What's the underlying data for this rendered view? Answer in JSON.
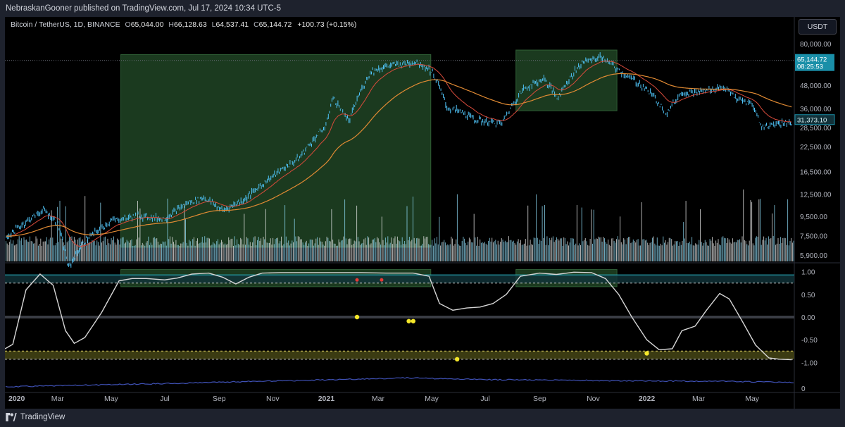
{
  "publisher": "NebraskanGooner published on TradingView.com, Jul 17, 2024 10:34 UTC-5",
  "symbol": {
    "name": "Bitcoin / TetherUS, 1D, BINANCE",
    "o_label": "O",
    "o": "65,044.00",
    "h_label": "H",
    "h": "66,128.63",
    "l_label": "L",
    "l": "64,537.41",
    "c_label": "C",
    "c": "65,144.72",
    "change": "+100.73 (+0.15%)"
  },
  "currency": "USDT",
  "footer_brand": "TradingView",
  "colors": {
    "background": "#000000",
    "frame": "#1e222d",
    "candle": "#4fc3f7",
    "ema_short": "#d84b3b",
    "ema_long": "#e08a33",
    "highlight_box": "#1b3a1f",
    "osc_line": "#d6d6d6",
    "yellow_band": "#3b3b12",
    "bottom_line": "#3f51b5",
    "tag_teal": "#1a8fa8",
    "tag_dark": "#12323a"
  },
  "chart_data": [
    {
      "type": "line",
      "title": "",
      "scale": "log",
      "price_axis_ticks": [
        "80,000.00",
        "48,000.00",
        "36,000.00",
        "28,500.00",
        "22,500.00",
        "16,500.00",
        "12,500.00",
        "9,500.00",
        "7,500.00",
        "5,900.00"
      ],
      "price_axis_tick_values": [
        80000,
        48000,
        36000,
        28500,
        22500,
        16500,
        12500,
        9500,
        7500,
        5900
      ],
      "time_axis_labels": [
        "2020",
        "Mar",
        "May",
        "Jul",
        "Sep",
        "Nov",
        "2021",
        "Mar",
        "May",
        "Jul",
        "Sep",
        "Nov",
        "2022",
        "Mar",
        "May"
      ],
      "last_price_tag": {
        "price": "65,144.72",
        "countdown": "08:25:53",
        "value": 65144.72
      },
      "level_tag": {
        "price": "31,373.10",
        "value": 31373.1
      },
      "ylim": [
        5500,
        92000
      ],
      "series": [
        {
          "kind": "candles",
          "x": [
            "2020-01-01",
            "2020-02-01",
            "2020-02-14",
            "2020-03-01",
            "2020-03-13",
            "2020-04-01",
            "2020-05-01",
            "2020-06-01",
            "2020-07-01",
            "2020-07-27",
            "2020-08-15",
            "2020-09-05",
            "2020-10-01",
            "2020-11-01",
            "2020-12-01",
            "2021-01-01",
            "2021-01-08",
            "2021-01-27",
            "2021-02-21",
            "2021-03-13",
            "2021-04-14",
            "2021-05-01",
            "2021-05-19",
            "2021-06-01",
            "2021-06-22",
            "2021-07-20",
            "2021-08-14",
            "2021-09-06",
            "2021-09-21",
            "2021-10-20",
            "2021-11-10",
            "2021-12-01",
            "2021-12-31",
            "2022-01-24",
            "2022-02-10",
            "2022-03-01",
            "2022-03-29",
            "2022-04-15",
            "2022-05-01",
            "2022-05-12",
            "2022-06-01"
          ],
          "y": [
            7200,
            9400,
            10300,
            8700,
            5000,
            7000,
            9000,
            9600,
            9200,
            11200,
            12000,
            10200,
            11800,
            15600,
            19500,
            29000,
            41000,
            30500,
            57000,
            61000,
            64000,
            57000,
            36000,
            35000,
            31000,
            30000,
            46000,
            52000,
            41000,
            64000,
            68000,
            57000,
            46000,
            34000,
            44000,
            44000,
            47000,
            40000,
            38000,
            28500,
            30200
          ]
        }
      ],
      "volume_note": "volume bars"
    },
    {
      "type": "line",
      "title": "",
      "y_axis_ticks": [
        "1.00",
        "0.50",
        "0.00",
        "-0.50",
        "-1.00"
      ],
      "y_axis_tick_values": [
        1.0,
        0.5,
        0.0,
        -0.5,
        -1.0
      ],
      "ylim": [
        -1.15,
        1.15
      ],
      "levels": [
        0.93,
        0.75,
        0.0,
        -0.75,
        -0.93
      ],
      "series": [
        {
          "kind": "oscillator",
          "x": [
            "2020-01-01",
            "2020-01-10",
            "2020-01-25",
            "2020-02-10",
            "2020-02-25",
            "2020-03-10",
            "2020-03-20",
            "2020-04-01",
            "2020-04-20",
            "2020-05-10",
            "2020-05-25",
            "2020-06-10",
            "2020-07-01",
            "2020-07-15",
            "2020-08-01",
            "2020-08-20",
            "2020-09-05",
            "2020-09-20",
            "2020-10-05",
            "2020-10-20",
            "2020-11-10",
            "2020-12-10",
            "2021-01-10",
            "2021-02-10",
            "2021-03-10",
            "2021-04-10",
            "2021-04-28",
            "2021-05-10",
            "2021-05-25",
            "2021-06-10",
            "2021-06-25",
            "2021-07-10",
            "2021-07-25",
            "2021-08-10",
            "2021-09-01",
            "2021-09-20",
            "2021-10-10",
            "2021-10-30",
            "2021-11-15",
            "2021-11-30",
            "2021-12-15",
            "2022-01-01",
            "2022-01-15",
            "2022-01-30",
            "2022-02-10",
            "2022-02-25",
            "2022-03-10",
            "2022-03-25",
            "2022-04-05",
            "2022-04-20",
            "2022-05-05",
            "2022-05-20",
            "2022-06-01",
            "2022-06-15"
          ],
          "y": [
            -0.7,
            -0.6,
            0.6,
            0.95,
            0.7,
            -0.3,
            -0.58,
            -0.45,
            0.1,
            0.8,
            0.85,
            0.85,
            0.82,
            0.86,
            0.95,
            0.97,
            0.88,
            0.73,
            0.88,
            0.97,
            0.98,
            0.98,
            0.98,
            0.98,
            0.97,
            0.97,
            0.9,
            0.3,
            0.15,
            0.2,
            0.22,
            0.3,
            0.5,
            0.9,
            0.97,
            0.94,
            0.99,
            0.98,
            0.85,
            0.5,
            0.0,
            -0.5,
            -0.72,
            -0.7,
            -0.3,
            -0.2,
            0.15,
            0.52,
            0.4,
            -0.1,
            -0.62,
            -0.9,
            -0.93,
            -0.94
          ]
        },
        {
          "kind": "signals_yellow",
          "x": [
            "2021-02-05",
            "2021-04-05",
            "2021-04-10",
            "2021-05-30",
            "2022-01-01"
          ],
          "y": [
            0.0,
            -0.09,
            -0.09,
            -0.93,
            -0.8
          ]
        },
        {
          "kind": "signals_red",
          "x": [
            "2021-02-05",
            "2021-03-05"
          ],
          "y": [
            0.82,
            0.82
          ]
        }
      ]
    },
    {
      "type": "line",
      "title": "",
      "y_axis_ticks": [
        "0"
      ],
      "series": [
        {
          "kind": "indicator",
          "x": [
            "2020-01-01",
            "2020-06-01",
            "2020-10-01",
            "2021-01-01",
            "2021-04-01",
            "2021-07-01",
            "2021-10-01",
            "2022-01-01",
            "2022-04-01",
            "2022-06-15"
          ],
          "y": [
            0.3,
            0.45,
            0.6,
            0.7,
            0.82,
            0.72,
            0.68,
            0.64,
            0.62,
            0.55
          ]
        }
      ]
    }
  ],
  "highlight_boxes": [
    {
      "start": "2020-05-12",
      "end": "2021-04-30",
      "price_top": 70000,
      "price_bottom": 6500,
      "osc_top": 1.05,
      "osc_bottom": 0.67
    },
    {
      "start": "2021-08-05",
      "end": "2021-11-28",
      "price_top": 74000,
      "price_bottom": 35000,
      "osc_top": 1.05,
      "osc_bottom": 0.67
    }
  ]
}
